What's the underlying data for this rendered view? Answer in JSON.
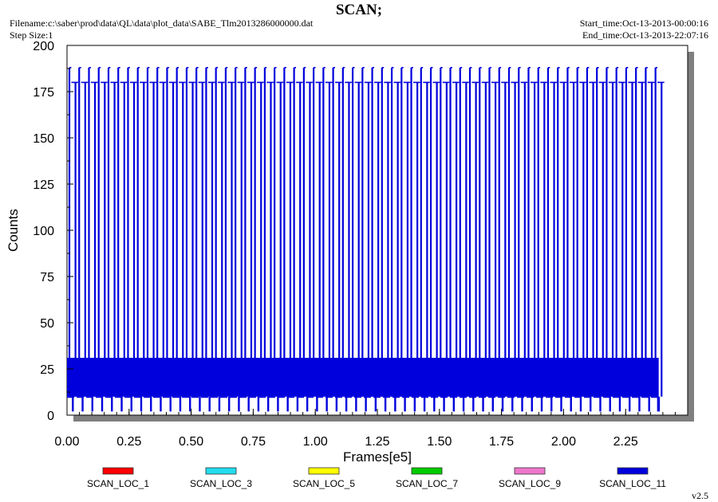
{
  "header": {
    "title": "SCAN;",
    "filename": "Filename:c:\\saber\\prod\\data\\QL\\data\\plot_data\\SABE_Tlm2013286000000.dat",
    "step_size": "Step Size:1",
    "start_time": "Start_time:Oct-13-2013-00:00:16",
    "end_time": "End_time:Oct-13-2013-22:07:16",
    "version": "v2.5"
  },
  "chart_data": {
    "type": "line",
    "title": "SCAN;",
    "xlabel": "Frames[e5]",
    "ylabel": "Counts",
    "xlim": [
      0,
      2.5
    ],
    "ylim": [
      0,
      200
    ],
    "x_ticks": [
      "0.00",
      "0.25",
      "0.50",
      "0.75",
      "1.00",
      "1.25",
      "1.50",
      "1.75",
      "2.00",
      "2.25"
    ],
    "y_ticks": [
      "0",
      "25",
      "50",
      "75",
      "100",
      "125",
      "150",
      "175",
      "200"
    ],
    "grid": false,
    "legend_position": "bottom",
    "series": [
      {
        "name": "SCAN_LOC_1",
        "color": "#ff0000",
        "values": []
      },
      {
        "name": "SCAN_LOC_3",
        "color": "#22ddee",
        "values": []
      },
      {
        "name": "SCAN_LOC_5",
        "color": "#ffff00",
        "values": []
      },
      {
        "name": "SCAN_LOC_7",
        "color": "#00cc00",
        "values": []
      },
      {
        "name": "SCAN_LOC_9",
        "color": "#ee77cc",
        "values": []
      },
      {
        "name": "SCAN_LOC_11",
        "color": "#0000dd",
        "values": [],
        "data_extent": {
          "x_min": 0.0,
          "x_max": 2.38,
          "y_min": 2,
          "y_max": 188
        },
        "scan_upper_levels": [
          180,
          188
        ],
        "scan_lower_level": 10,
        "baseline_band": [
          10,
          31
        ],
        "scan_cycles": 61
      }
    ]
  }
}
